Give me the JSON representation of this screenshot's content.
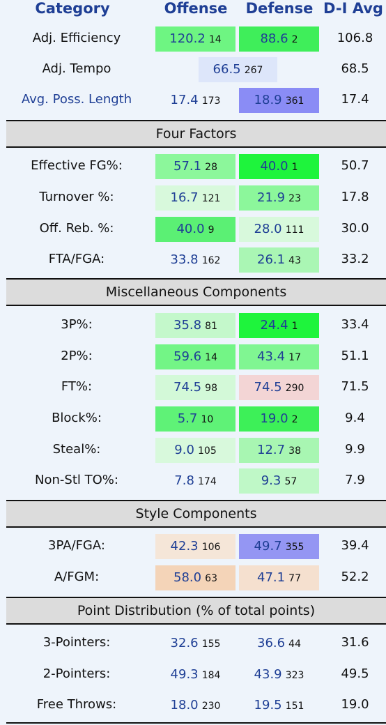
{
  "header": {
    "category": "Category",
    "offense": "Offense",
    "defense": "Defense",
    "avg": "D-I Avg"
  },
  "top_rows": [
    {
      "label": "Adj. Efficiency",
      "off_val": "120.2",
      "off_rank": "14",
      "off_color": "#6ef582",
      "def_val": "88.6",
      "def_rank": "2",
      "def_color": "#3fee5a",
      "avg": "106.8"
    },
    {
      "label": "Adj. Tempo",
      "tempo_val": "66.5",
      "tempo_rank": "267",
      "tempo_color": "#dde6fa",
      "avg": "68.5"
    },
    {
      "label": "Avg. Poss. Length",
      "off_val": "17.4",
      "off_rank": "173",
      "off_color": "#eef4fb",
      "def_val": "18.9",
      "def_rank": "361",
      "def_color": "#8a8cf5",
      "avg": "17.4"
    }
  ],
  "sections": {
    "four_factors": "Four Factors",
    "misc": "Miscellaneous Components",
    "style": "Style Components",
    "points": "Point Distribution (% of total points)"
  },
  "four_factors": [
    {
      "label": "Effective FG%:",
      "off_val": "57.1",
      "off_rank": "28",
      "off_color": "#8cf79b",
      "def_val": "40.0",
      "def_rank": "1",
      "def_color": "#1ef43c",
      "avg": "50.7"
    },
    {
      "label": "Turnover %:",
      "off_val": "16.7",
      "off_rank": "121",
      "off_color": "#d8f9dc",
      "def_val": "21.9",
      "def_rank": "23",
      "def_color": "#8cf79b",
      "avg": "17.8"
    },
    {
      "label": "Off. Reb. %:",
      "off_val": "40.0",
      "off_rank": "9",
      "off_color": "#5bf074",
      "def_val": "28.0",
      "def_rank": "111",
      "def_color": "#d8f9dc",
      "avg": "30.0"
    },
    {
      "label": "FTA/FGA:",
      "off_val": "33.8",
      "off_rank": "162",
      "off_color": "#eef4fb",
      "def_val": "26.1",
      "def_rank": "43",
      "def_color": "#aaf6b4",
      "avg": "33.2"
    }
  ],
  "misc": [
    {
      "label": "3P%:",
      "off_val": "35.8",
      "off_rank": "81",
      "off_color": "#c4f8cb",
      "def_val": "24.4",
      "def_rank": "1",
      "def_color": "#1ef43c",
      "avg": "33.4"
    },
    {
      "label": "2P%:",
      "off_val": "59.6",
      "off_rank": "14",
      "off_color": "#73f586",
      "def_val": "43.4",
      "def_rank": "17",
      "def_color": "#80f692",
      "avg": "51.1"
    },
    {
      "label": "FT%:",
      "off_val": "74.5",
      "off_rank": "98",
      "off_color": "#d3f9d8",
      "def_val": "74.5",
      "def_rank": "290",
      "def_color": "#f3d5d5",
      "avg": "71.5"
    },
    {
      "label": "Block%:",
      "off_val": "5.7",
      "off_rank": "10",
      "off_color": "#5ff277",
      "def_val": "19.0",
      "def_rank": "2",
      "def_color": "#3df058",
      "avg": "9.4"
    },
    {
      "label": "Steal%:",
      "off_val": "9.0",
      "off_rank": "105",
      "off_color": "#d8f9dc",
      "def_val": "12.7",
      "def_rank": "38",
      "def_color": "#a8f6b2",
      "avg": "9.9"
    },
    {
      "label": "Non-Stl TO%:",
      "off_val": "7.8",
      "off_rank": "174",
      "off_color": "#eef4fb",
      "def_val": "9.3",
      "def_rank": "57",
      "def_color": "#bff8c7",
      "avg": "7.9"
    }
  ],
  "style": [
    {
      "label": "3PA/FGA:",
      "off_val": "42.3",
      "off_rank": "106",
      "off_color": "#f5e6d8",
      "def_val": "49.7",
      "def_rank": "355",
      "def_color": "#9496f3",
      "avg": "39.4"
    },
    {
      "label": "A/FGM:",
      "off_val": "58.0",
      "off_rank": "63",
      "off_color": "#f4d4b8",
      "def_val": "47.1",
      "def_rank": "77",
      "def_color": "#f5e0cf",
      "avg": "52.2"
    }
  ],
  "points": [
    {
      "label": "3-Pointers:",
      "off_val": "32.6",
      "off_rank": "155",
      "off_color": "#eef4fb",
      "def_val": "36.6",
      "def_rank": "44",
      "def_color": "#eef4fb",
      "avg": "31.6"
    },
    {
      "label": "2-Pointers:",
      "off_val": "49.3",
      "off_rank": "184",
      "off_color": "#eef4fb",
      "def_val": "43.9",
      "def_rank": "323",
      "def_color": "#eef4fb",
      "avg": "49.5"
    },
    {
      "label": "Free Throws:",
      "off_val": "18.0",
      "off_rank": "230",
      "off_color": "#eef4fb",
      "def_val": "19.5",
      "def_rank": "151",
      "def_color": "#eef4fb",
      "avg": "19.0"
    }
  ]
}
